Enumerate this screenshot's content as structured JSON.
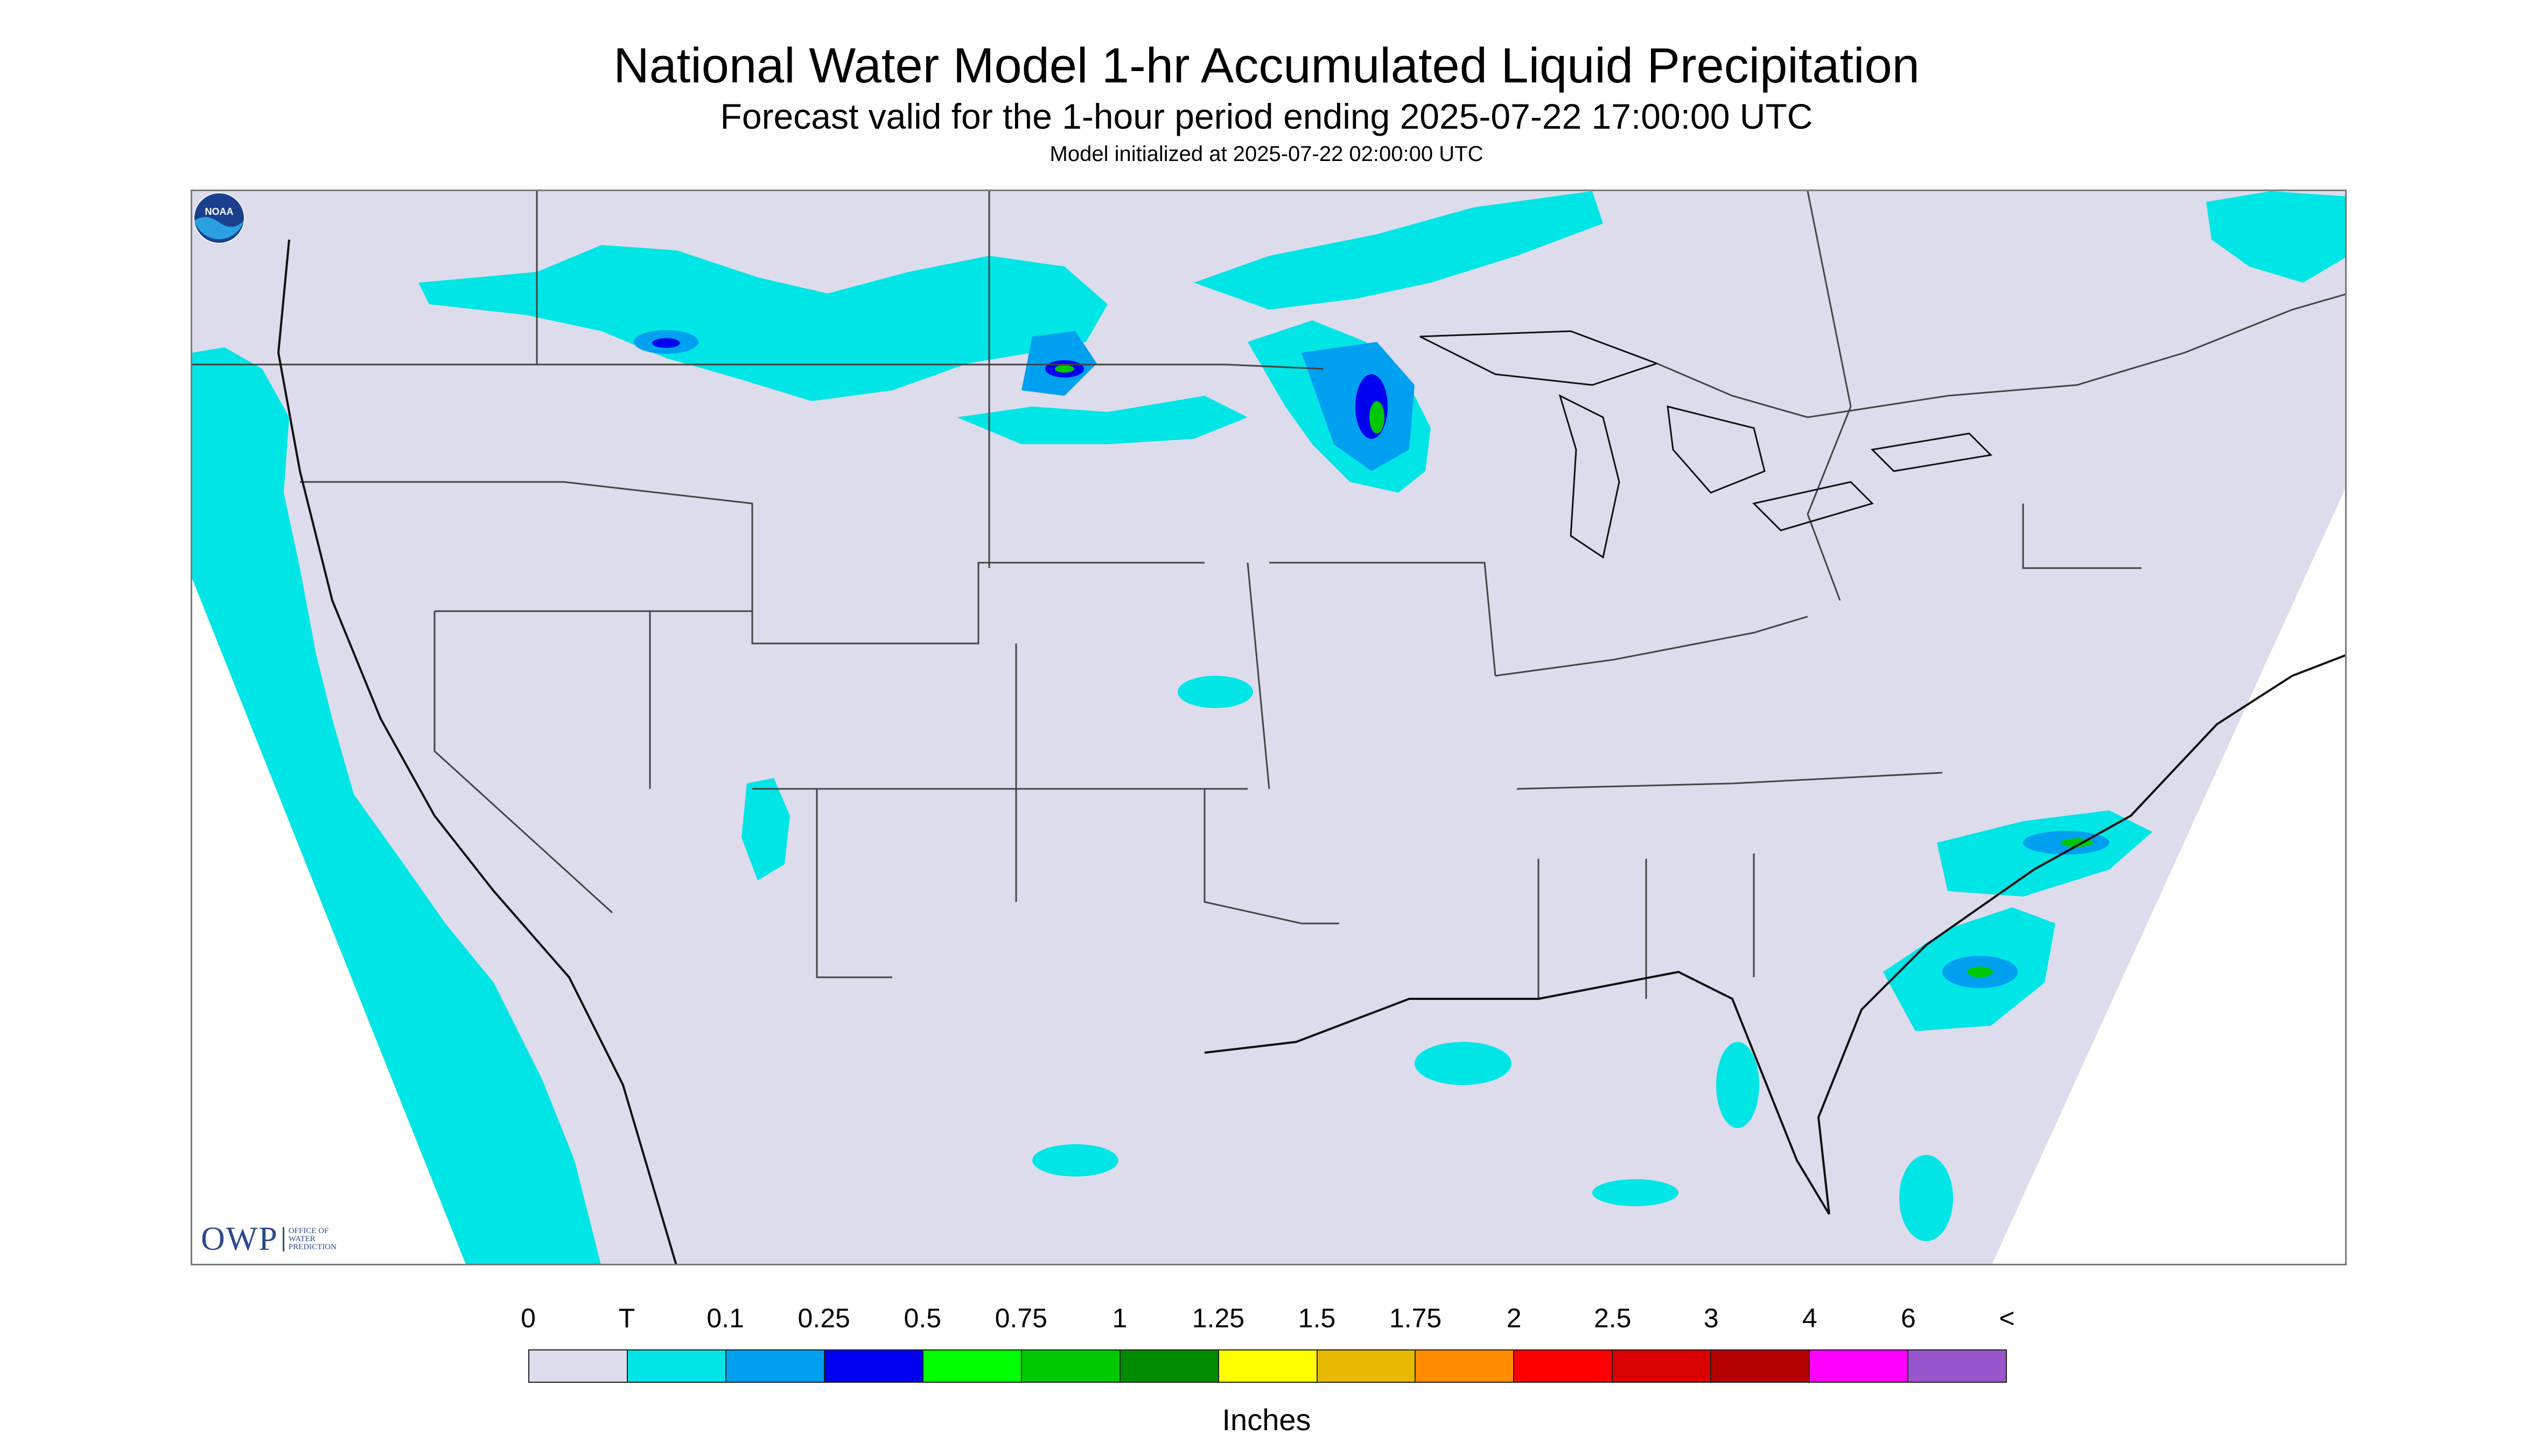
{
  "header": {
    "title": "National Water Model 1-hr Accumulated Liquid Precipitation",
    "subtitle": "Forecast valid for the 1-hour period ending 2025-07-22 17:00:00 UTC",
    "init": "Model initialized at 2025-07-22 02:00:00 UTC"
  },
  "map": {
    "background_color": "#dcdcec",
    "logos": {
      "owp_letters": "OWP",
      "owp_sub": [
        "OFFICE OF",
        "WATER",
        "PREDICTION"
      ],
      "noaa_text": "NOAA"
    }
  },
  "legend": {
    "tick_labels": [
      "0",
      "T",
      "0.1",
      "0.25",
      "0.5",
      "0.75",
      "1",
      "1.25",
      "1.5",
      "1.75",
      "2",
      "2.5",
      "3",
      "4",
      "6",
      "<"
    ],
    "colors": [
      "#dcdcec",
      "#00e5e5",
      "#00a0f0",
      "#0000f0",
      "#00ff00",
      "#00c800",
      "#008c00",
      "#ffff00",
      "#e6b800",
      "#ff8c00",
      "#ff0000",
      "#d80000",
      "#b40000",
      "#ff00ff",
      "#9955cc"
    ],
    "units": "Inches"
  }
}
